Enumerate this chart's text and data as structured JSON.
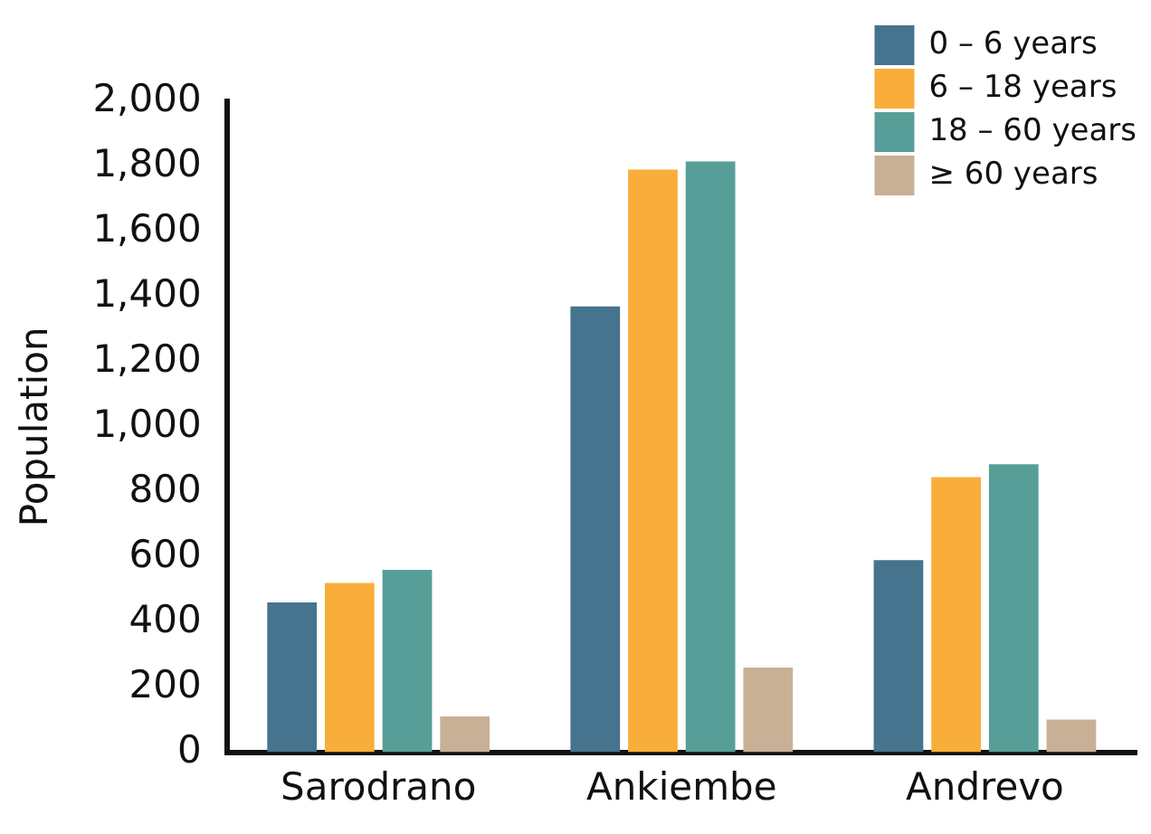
{
  "chart_data": {
    "type": "bar",
    "ylabel": "Population",
    "categories": [
      "Sarodrano",
      "Ankiembe",
      "Andrevo"
    ],
    "series": [
      {
        "name": "0 – 6 years",
        "color": "#46738e",
        "values": [
          460,
          1370,
          590
        ]
      },
      {
        "name": "6 – 18 years",
        "color": "#f9ae3b",
        "values": [
          520,
          1790,
          845
        ]
      },
      {
        "name": "18 – 60 years",
        "color": "#589e98",
        "values": [
          560,
          1815,
          885
        ]
      },
      {
        "name": "≥ 60 years",
        "color": "#c8b096",
        "values": [
          110,
          260,
          100
        ]
      }
    ],
    "ylim": [
      0,
      2000
    ],
    "yticks": [
      {
        "value": 0,
        "label": "0"
      },
      {
        "value": 200,
        "label": "200"
      },
      {
        "value": 400,
        "label": "400"
      },
      {
        "value": 600,
        "label": "600"
      },
      {
        "value": 800,
        "label": "800"
      },
      {
        "value": 1000,
        "label": "1,000"
      },
      {
        "value": 1200,
        "label": "1,200"
      },
      {
        "value": 1400,
        "label": "1,400"
      },
      {
        "value": 1600,
        "label": "1,600"
      },
      {
        "value": 1800,
        "label": "1,800"
      },
      {
        "value": 2000,
        "label": "2,000"
      }
    ],
    "grid": false,
    "legend": "top right"
  }
}
